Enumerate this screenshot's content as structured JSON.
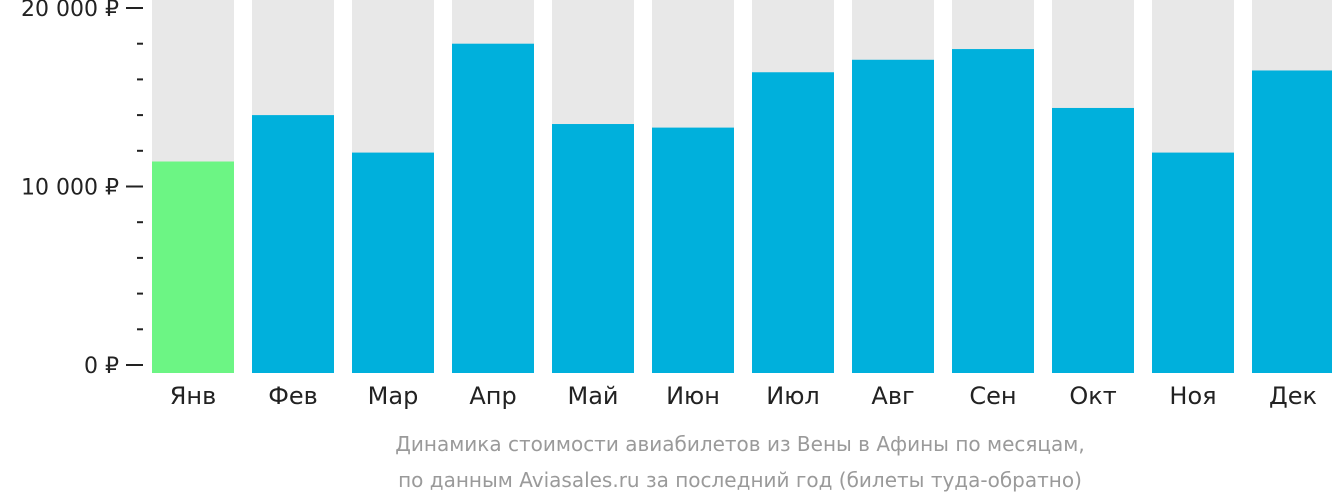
{
  "chart_data": {
    "type": "bar",
    "categories": [
      "Янв",
      "Фев",
      "Мар",
      "Апр",
      "Май",
      "Июн",
      "Июл",
      "Авг",
      "Сен",
      "Окт",
      "Ноя",
      "Дек"
    ],
    "values": [
      11400,
      14000,
      11900,
      18000,
      13500,
      13300,
      16400,
      17100,
      17700,
      14400,
      11900,
      16500
    ],
    "ylim": [
      0,
      20000
    ],
    "ytick_labels": [
      {
        "value": 0,
        "label": "0 ₽"
      },
      {
        "value": 10000,
        "label": "10 000 ₽"
      },
      {
        "value": 20000,
        "label": "20 000 ₽"
      }
    ],
    "minor_tick_step": 2000,
    "highlight_index": 0,
    "colors": {
      "bar": "#00b0dc",
      "highlight": "#6cf584",
      "background_bar": "#e8e8e8",
      "axis": "#222222"
    },
    "caption": [
      "Динамика стоимости авиабилетов из Вены в Афины по месяцам,",
      "по данным Aviasales.ru за последний год (билеты туда-обратно)"
    ]
  }
}
